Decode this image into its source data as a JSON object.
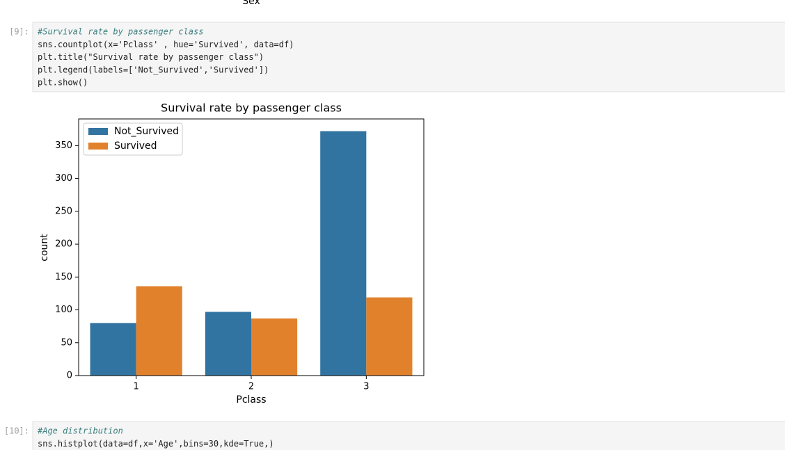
{
  "notebook": {
    "prev_output_xlabel": "Sex",
    "cells": [
      {
        "prompt": "[9]:",
        "lines": [
          "#Survival rate by passenger class",
          "sns.countplot(x='Pclass' , hue='Survived', data=df)",
          "plt.title(\"Survival rate by passenger class\")",
          "plt.legend(labels=['Not_Survived','Survived'])",
          "plt.show()"
        ]
      },
      {
        "prompt": "[10]:",
        "lines": [
          "#Age distribution",
          "sns.histplot(data=df,x='Age',bins=30,kde=True,)"
        ]
      }
    ]
  },
  "chart_data": {
    "type": "bar",
    "title": "Survival rate by passenger class",
    "x_label": "Pclass",
    "y_label": "count",
    "categories": [
      "1",
      "2",
      "3"
    ],
    "series": [
      {
        "name": "Not_Survived",
        "color": "#3274a1",
        "values": [
          80,
          97,
          372
        ]
      },
      {
        "name": "Survived",
        "color": "#e1812c",
        "values": [
          136,
          87,
          119
        ]
      }
    ],
    "ylim": [
      0,
      390.6
    ],
    "yticks": [
      0,
      50,
      100,
      150,
      200,
      250,
      300,
      350
    ],
    "legend": "upper left",
    "grid": false
  }
}
